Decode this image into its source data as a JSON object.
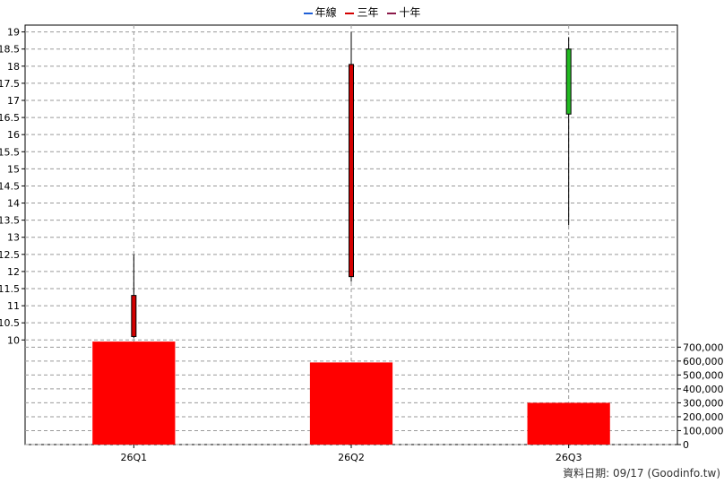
{
  "legend": [
    {
      "label": "年線",
      "color": "#1f5fd6"
    },
    {
      "label": "三年",
      "color": "#d40000"
    },
    {
      "label": "十年",
      "color": "#8b1a4a"
    }
  ],
  "footer": {
    "date_label": "資料日期: 09/17",
    "source": "(Goodinfo.tw)"
  },
  "chart_data": [
    {
      "type": "candlestick",
      "categories": [
        "26Q1",
        "26Q2",
        "26Q3"
      ],
      "candles": [
        {
          "open": 11.3,
          "high": 12.5,
          "low": 10.05,
          "close": 10.1,
          "color": "#d40000"
        },
        {
          "open": 18.05,
          "high": 19.0,
          "low": 11.7,
          "close": 11.85,
          "color": "#d40000"
        },
        {
          "open": 16.6,
          "high": 18.85,
          "low": 13.35,
          "close": 18.5,
          "color": "#22bb22"
        }
      ],
      "y_ticks": [
        "10",
        "10.5",
        "11",
        "11.5",
        "12",
        "12.5",
        "13",
        "13.5",
        "14",
        "14.5",
        "15",
        "15.5",
        "16",
        "16.5",
        "17",
        "17.5",
        "18",
        "18.5",
        "19"
      ],
      "ylim": [
        9.85,
        19.2
      ],
      "grid": true
    },
    {
      "type": "bar",
      "categories": [
        "26Q1",
        "26Q2",
        "26Q3"
      ],
      "values": [
        740000,
        590000,
        300000
      ],
      "color": "#ff0000",
      "y_ticks": [
        "0",
        "100,000",
        "200,000",
        "300,000",
        "400,000",
        "500,000",
        "600,000",
        "700,000"
      ],
      "ylim": [
        0,
        760000
      ],
      "y_axis_side": "right",
      "grid": true
    }
  ]
}
